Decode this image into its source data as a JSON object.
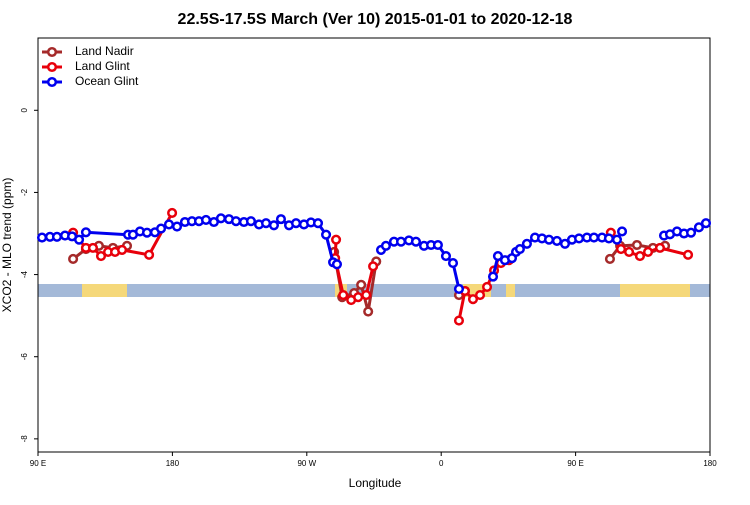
{
  "chart_data": {
    "type": "line",
    "title": "22.5S-17.5S March (Ver 10)   2015-01-01 to 2020-12-18",
    "xlabel": "Longitude",
    "ylabel": "XCO2 - MLO trend (ppm)",
    "xlim": [
      90,
      540
    ],
    "ylim": [
      -8.32,
      1.76
    ],
    "xticks": [
      {
        "value": 90,
        "label": "90 E"
      },
      {
        "value": 180,
        "label": "180"
      },
      {
        "value": 270,
        "label": "90 W"
      },
      {
        "value": 360,
        "label": "0"
      },
      {
        "value": 450,
        "label": "90 E"
      },
      {
        "value": 540,
        "label": "180"
      }
    ],
    "yticks": [
      0,
      -2,
      -4,
      -6,
      -8
    ],
    "legend": "top-left",
    "series": [
      {
        "name": "Land Nadir",
        "color": "#a52a2a",
        "x": [
          113.5,
          122.1,
          130.8,
          140.2,
          149.6,
          null,
          288.3,
          293.7,
          301.7,
          306.4,
          311.1,
          316.5,
          null,
          371.9,
          375.9,
          null,
          473.0,
          479.8,
          491.1,
          501.8,
          509.9
        ],
        "values": [
          -3.62,
          -3.38,
          -3.3,
          -3.35,
          -3.3,
          null,
          -3.45,
          -4.55,
          -4.45,
          -4.25,
          -4.9,
          -3.68,
          null,
          -4.5,
          -4.4,
          null,
          -3.62,
          -3.3,
          -3.28,
          -3.35,
          -3.3
        ]
      },
      {
        "name": "Land Glint",
        "color": "#e8000b",
        "x": [
          113.5,
          122.1,
          126.8,
          132.2,
          136.9,
          141.6,
          146.3,
          164.4,
          179.8,
          null,
          289.6,
          289.0,
          294.4,
          299.7,
          304.4,
          309.8,
          314.4,
          null,
          371.9,
          375.9,
          381.3,
          386.0,
          390.7,
          395.4,
          400.0,
          405.4,
          null,
          473.6,
          480.4,
          485.8,
          493.1,
          498.5,
          506.5,
          525.3
        ],
        "values": [
          -2.98,
          -3.35,
          -3.35,
          -3.55,
          -3.45,
          -3.45,
          -3.4,
          -3.52,
          -2.5,
          null,
          -3.15,
          -3.6,
          -4.5,
          -4.62,
          -4.55,
          -4.5,
          -3.8,
          null,
          -5.12,
          -4.4,
          -4.6,
          -4.5,
          -4.3,
          -3.9,
          -3.72,
          -3.65,
          null,
          -2.98,
          -3.38,
          -3.45,
          -3.55,
          -3.45,
          -3.35,
          -3.52
        ]
      },
      {
        "name": "Ocean Glint",
        "color": "#0000ee",
        "x": [
          92.7,
          98.0,
          102.7,
          108.1,
          112.8,
          117.5,
          122.1,
          150.3,
          153.6,
          158.3,
          163.0,
          168.3,
          172.4,
          177.7,
          183.1,
          188.4,
          193.1,
          197.8,
          202.5,
          207.8,
          212.5,
          217.9,
          222.6,
          227.9,
          232.6,
          238.0,
          242.7,
          248.0,
          252.7,
          258.1,
          262.8,
          268.1,
          272.8,
          277.5,
          282.9,
          287.6,
          290.2,
          null,
          319.7,
          323.0,
          328.4,
          333.1,
          338.4,
          343.1,
          348.5,
          353.2,
          357.8,
          363.2,
          367.9,
          371.9,
          null,
          394.7,
          398.0,
          402.7,
          407.4,
          410.1,
          412.7,
          417.4,
          422.8,
          427.5,
          432.2,
          437.5,
          442.9,
          447.6,
          452.3,
          457.6,
          462.3,
          467.7,
          472.3,
          477.7,
          481.1,
          null,
          509.2,
          513.2,
          517.9,
          522.6,
          527.3,
          532.6,
          537.3
        ],
        "values": [
          -3.1,
          -3.08,
          -3.08,
          -3.05,
          -3.07,
          -3.15,
          -2.97,
          -3.03,
          -3.03,
          -2.95,
          -2.98,
          -2.97,
          -2.88,
          -2.78,
          -2.83,
          -2.72,
          -2.7,
          -2.7,
          -2.67,
          -2.72,
          -2.63,
          -2.65,
          -2.7,
          -2.72,
          -2.7,
          -2.78,
          -2.75,
          -2.8,
          -2.65,
          -2.8,
          -2.75,
          -2.78,
          -2.73,
          -2.75,
          -3.03,
          -3.7,
          -3.75,
          null,
          -3.4,
          -3.3,
          -3.2,
          -3.2,
          -3.17,
          -3.2,
          -3.3,
          -3.28,
          -3.28,
          -3.55,
          -3.72,
          -4.35,
          null,
          -4.05,
          -3.55,
          -3.65,
          -3.6,
          -3.45,
          -3.38,
          -3.25,
          -3.1,
          -3.12,
          -3.15,
          -3.18,
          -3.25,
          -3.15,
          -3.12,
          -3.1,
          -3.1,
          -3.1,
          -3.12,
          -3.15,
          -2.95,
          null,
          -3.05,
          -3.02,
          -2.95,
          -3.0,
          -2.98,
          -2.85,
          -2.75
        ]
      }
    ]
  }
}
